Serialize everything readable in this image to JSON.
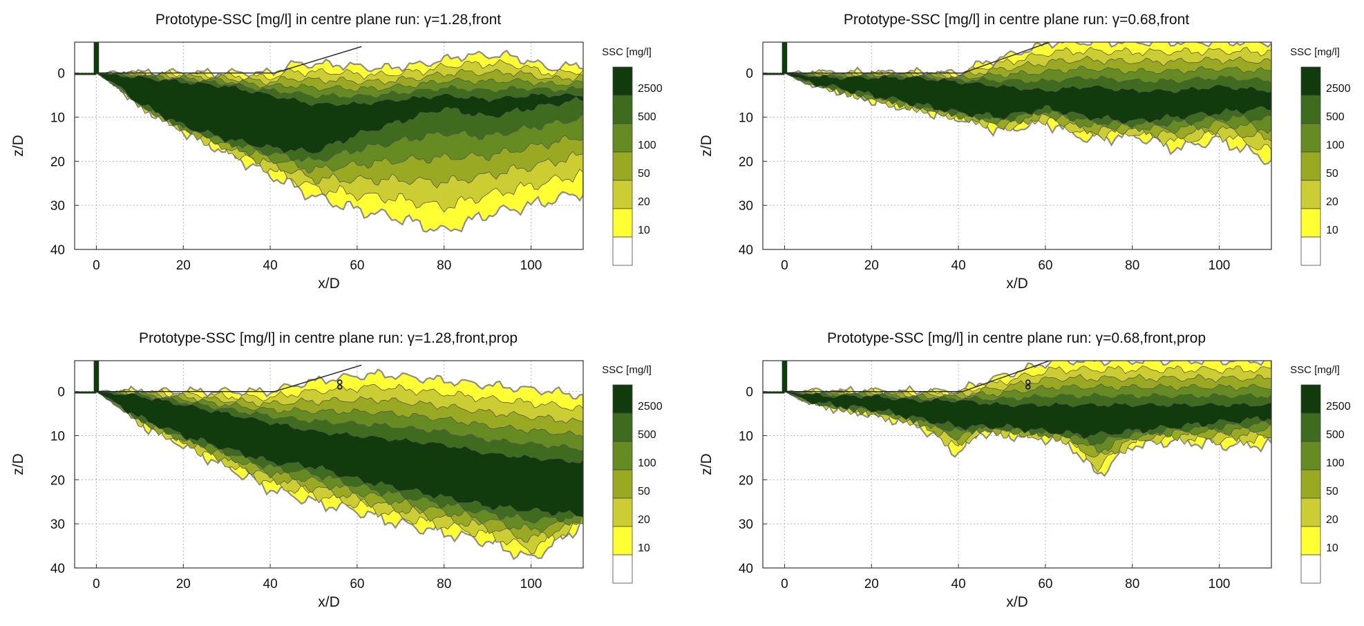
{
  "colors": {
    "levels": [
      "#ffffff",
      "#ffff33",
      "#cccc33",
      "#99aa22",
      "#668b22",
      "#3f6b1e",
      "#113a0d"
    ],
    "contour_line": "#8c8c8c",
    "grid": "#b5b5b5"
  },
  "chart_data": [
    {
      "type": "heatmap",
      "title": "Prototype-SSC [mg/l] in centre plane run: γ=1.28,front",
      "xlabel": "x/D",
      "ylabel": "z/D",
      "xlim": [
        -5,
        112
      ],
      "ylim": [
        40,
        -7
      ],
      "y_inverted": true,
      "xticks": [
        0,
        20,
        40,
        60,
        80,
        100
      ],
      "yticks": [
        0,
        10,
        20,
        30,
        40
      ],
      "grid": true,
      "colorbar": {
        "title": "SSC [mg/l]",
        "levels": [
          10,
          20,
          50,
          100,
          500,
          2500
        ],
        "position": "right"
      },
      "plume": {
        "outer_depth": [
          [
            0,
            0
          ],
          [
            5,
            3
          ],
          [
            10,
            7
          ],
          [
            20,
            13
          ],
          [
            30,
            18
          ],
          [
            40,
            23
          ],
          [
            50,
            28
          ],
          [
            60,
            31
          ],
          [
            70,
            33
          ],
          [
            80,
            36
          ],
          [
            90,
            32
          ],
          [
            100,
            30
          ],
          [
            112,
            27
          ]
        ],
        "outer_top": [
          [
            0,
            0
          ],
          [
            20,
            0
          ],
          [
            40,
            0
          ],
          [
            45,
            -2
          ],
          [
            55,
            -2
          ],
          [
            65,
            -1
          ],
          [
            75,
            -2
          ],
          [
            85,
            -4
          ],
          [
            95,
            -4
          ],
          [
            105,
            -1
          ],
          [
            112,
            -2
          ]
        ],
        "core_depth": [
          [
            0,
            0
          ],
          [
            5,
            3
          ],
          [
            10,
            7
          ],
          [
            20,
            12
          ],
          [
            30,
            15
          ],
          [
            40,
            17
          ],
          [
            50,
            18
          ],
          [
            60,
            14
          ],
          [
            70,
            11
          ],
          [
            80,
            8
          ],
          [
            90,
            10
          ],
          [
            100,
            8
          ],
          [
            112,
            6
          ]
        ],
        "core_top": [
          [
            0,
            0
          ],
          [
            10,
            1
          ],
          [
            20,
            2
          ],
          [
            30,
            3
          ],
          [
            40,
            5
          ],
          [
            50,
            7
          ],
          [
            60,
            7
          ],
          [
            70,
            6
          ],
          [
            80,
            5
          ],
          [
            90,
            6
          ],
          [
            100,
            5
          ],
          [
            112,
            5
          ]
        ]
      },
      "bed_profile": [
        [
          0,
          0
        ],
        [
          41,
          0
        ],
        [
          61,
          -6
        ]
      ],
      "marker": null
    },
    {
      "type": "heatmap",
      "title": "Prototype-SSC [mg/l] in centre plane run: γ=0.68,front",
      "xlabel": "x/D",
      "ylabel": "z/D",
      "xlim": [
        -5,
        112
      ],
      "ylim": [
        40,
        -7
      ],
      "y_inverted": true,
      "xticks": [
        0,
        20,
        40,
        60,
        80,
        100
      ],
      "yticks": [
        0,
        10,
        20,
        30,
        40
      ],
      "grid": true,
      "colorbar": {
        "title": "SSC [mg/l]",
        "levels": [
          10,
          20,
          50,
          100,
          500,
          2500
        ],
        "position": "right"
      },
      "plume": {
        "outer_depth": [
          [
            0,
            0
          ],
          [
            5,
            2
          ],
          [
            10,
            3
          ],
          [
            20,
            6
          ],
          [
            30,
            8
          ],
          [
            40,
            10
          ],
          [
            50,
            13
          ],
          [
            60,
            11
          ],
          [
            70,
            15
          ],
          [
            80,
            14
          ],
          [
            90,
            17
          ],
          [
            100,
            15
          ],
          [
            112,
            20
          ]
        ],
        "outer_top": [
          [
            0,
            0
          ],
          [
            20,
            0
          ],
          [
            40,
            0
          ],
          [
            45,
            -2
          ],
          [
            55,
            -5
          ],
          [
            62,
            -7
          ],
          [
            112,
            -7
          ]
        ],
        "core_depth": [
          [
            0,
            0
          ],
          [
            5,
            2
          ],
          [
            10,
            3
          ],
          [
            20,
            5
          ],
          [
            30,
            7
          ],
          [
            40,
            9
          ],
          [
            50,
            10
          ],
          [
            60,
            8
          ],
          [
            70,
            10
          ],
          [
            80,
            11
          ],
          [
            90,
            10
          ],
          [
            100,
            9
          ],
          [
            112,
            8
          ]
        ],
        "core_top": [
          [
            0,
            0
          ],
          [
            10,
            1
          ],
          [
            20,
            1
          ],
          [
            30,
            1
          ],
          [
            40,
            2
          ],
          [
            50,
            3
          ],
          [
            60,
            4
          ],
          [
            70,
            3
          ],
          [
            80,
            4
          ],
          [
            90,
            4
          ],
          [
            100,
            3
          ],
          [
            112,
            4
          ]
        ]
      },
      "bed_profile": [
        [
          0,
          0
        ],
        [
          41,
          0
        ],
        [
          61,
          -7
        ]
      ],
      "marker": null
    },
    {
      "type": "heatmap",
      "title": "Prototype-SSC [mg/l] in centre plane run: γ=1.28,front,prop",
      "xlabel": "x/D",
      "ylabel": "z/D",
      "xlim": [
        -5,
        112
      ],
      "ylim": [
        40,
        -7
      ],
      "y_inverted": true,
      "xticks": [
        0,
        20,
        40,
        60,
        80,
        100
      ],
      "yticks": [
        0,
        10,
        20,
        30,
        40
      ],
      "grid": true,
      "colorbar": {
        "title": "SSC [mg/l]",
        "levels": [
          10,
          20,
          50,
          100,
          500,
          2500
        ],
        "position": "right"
      },
      "plume": {
        "outer_depth": [
          [
            0,
            0
          ],
          [
            5,
            3
          ],
          [
            10,
            7
          ],
          [
            20,
            12
          ],
          [
            30,
            17
          ],
          [
            40,
            22
          ],
          [
            50,
            25
          ],
          [
            60,
            27
          ],
          [
            70,
            30
          ],
          [
            80,
            32
          ],
          [
            90,
            34
          ],
          [
            100,
            38
          ],
          [
            112,
            30
          ]
        ],
        "outer_top": [
          [
            0,
            0
          ],
          [
            20,
            0
          ],
          [
            40,
            0
          ],
          [
            48,
            -2
          ],
          [
            55,
            -3
          ],
          [
            65,
            -4
          ],
          [
            75,
            -3
          ],
          [
            85,
            -2
          ],
          [
            95,
            -1
          ],
          [
            105,
            0
          ],
          [
            112,
            1
          ]
        ],
        "core_depth": [
          [
            0,
            0
          ],
          [
            5,
            3
          ],
          [
            10,
            6
          ],
          [
            20,
            10
          ],
          [
            30,
            13
          ],
          [
            40,
            16
          ],
          [
            50,
            17
          ],
          [
            60,
            20
          ],
          [
            70,
            22
          ],
          [
            80,
            24
          ],
          [
            90,
            26
          ],
          [
            100,
            27
          ],
          [
            112,
            28
          ]
        ],
        "core_top": [
          [
            0,
            0
          ],
          [
            10,
            1
          ],
          [
            20,
            3
          ],
          [
            30,
            5
          ],
          [
            40,
            7
          ],
          [
            50,
            9
          ],
          [
            60,
            10
          ],
          [
            70,
            11
          ],
          [
            80,
            12
          ],
          [
            90,
            14
          ],
          [
            100,
            15
          ],
          [
            112,
            16
          ]
        ]
      },
      "bed_profile": [
        [
          0,
          0
        ],
        [
          41,
          0
        ],
        [
          61,
          -6
        ]
      ],
      "marker": {
        "x": 56,
        "z": -1.5
      }
    },
    {
      "type": "heatmap",
      "title": "Prototype-SSC [mg/l] in centre plane run: γ=0.68,front,prop",
      "xlabel": "x/D",
      "ylabel": "z/D",
      "xlim": [
        -5,
        112
      ],
      "ylim": [
        40,
        -7
      ],
      "y_inverted": true,
      "xticks": [
        0,
        20,
        40,
        60,
        80,
        100
      ],
      "yticks": [
        0,
        10,
        20,
        30,
        40
      ],
      "grid": true,
      "colorbar": {
        "title": "SSC [mg/l]",
        "levels": [
          10,
          20,
          50,
          100,
          500,
          2500
        ],
        "position": "right"
      },
      "plume": {
        "outer_depth": [
          [
            0,
            0
          ],
          [
            5,
            2
          ],
          [
            10,
            3
          ],
          [
            20,
            5
          ],
          [
            30,
            7
          ],
          [
            40,
            14
          ],
          [
            45,
            9
          ],
          [
            55,
            10
          ],
          [
            65,
            11
          ],
          [
            72,
            19
          ],
          [
            80,
            12
          ],
          [
            90,
            11
          ],
          [
            100,
            12
          ],
          [
            112,
            12
          ]
        ],
        "outer_top": [
          [
            0,
            0
          ],
          [
            20,
            0
          ],
          [
            40,
            0
          ],
          [
            45,
            -2
          ],
          [
            55,
            -5
          ],
          [
            62,
            -7
          ],
          [
            112,
            -7
          ]
        ],
        "core_depth": [
          [
            0,
            0
          ],
          [
            5,
            2
          ],
          [
            10,
            3
          ],
          [
            20,
            4
          ],
          [
            30,
            6
          ],
          [
            40,
            8
          ],
          [
            50,
            8
          ],
          [
            60,
            9
          ],
          [
            70,
            10
          ],
          [
            80,
            9
          ],
          [
            90,
            8
          ],
          [
            100,
            7
          ],
          [
            112,
            6
          ]
        ],
        "core_top": [
          [
            0,
            0
          ],
          [
            10,
            1
          ],
          [
            20,
            1
          ],
          [
            30,
            2
          ],
          [
            40,
            2
          ],
          [
            50,
            3
          ],
          [
            60,
            3
          ],
          [
            70,
            3
          ],
          [
            80,
            3
          ],
          [
            90,
            3
          ],
          [
            100,
            3
          ],
          [
            112,
            3
          ]
        ]
      },
      "bed_profile": [
        [
          0,
          0
        ],
        [
          41,
          0
        ],
        [
          61,
          -7
        ]
      ],
      "marker": {
        "x": 56,
        "z": -1.5
      }
    }
  ]
}
